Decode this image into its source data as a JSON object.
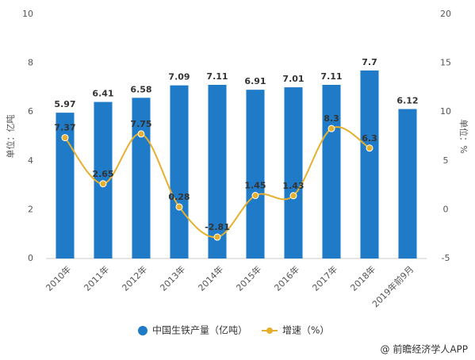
{
  "chart_data": {
    "type": "combo",
    "categories": [
      "2010年",
      "2011年",
      "2012年",
      "2013年",
      "2014年",
      "2015年",
      "2016年",
      "2017年",
      "2018年",
      "2019年前9月"
    ],
    "series": [
      {
        "name": "中国生铁产量（亿吨）",
        "type": "bar",
        "color": "#1f7bc7",
        "values": [
          5.97,
          6.41,
          6.58,
          7.09,
          7.11,
          6.91,
          7.01,
          7.11,
          7.7,
          6.12
        ]
      },
      {
        "name": "增速（%）",
        "type": "line",
        "axis": "y2",
        "color": "#e6b02e",
        "values": [
          7.37,
          2.65,
          7.75,
          0.28,
          -2.81,
          1.45,
          1.43,
          8.3,
          6.3,
          null
        ]
      }
    ],
    "ylabel": "单位：亿吨",
    "y2label": "单位：%",
    "ylim": [
      0,
      10
    ],
    "yticks": [
      0,
      2,
      4,
      6,
      8,
      10
    ],
    "y2lim": [
      -5,
      20
    ],
    "y2ticks": [
      -5,
      0,
      5,
      10,
      15,
      20
    ],
    "grid": false,
    "legend": "bottom",
    "source": "@ 前瞻经济学人APP"
  }
}
